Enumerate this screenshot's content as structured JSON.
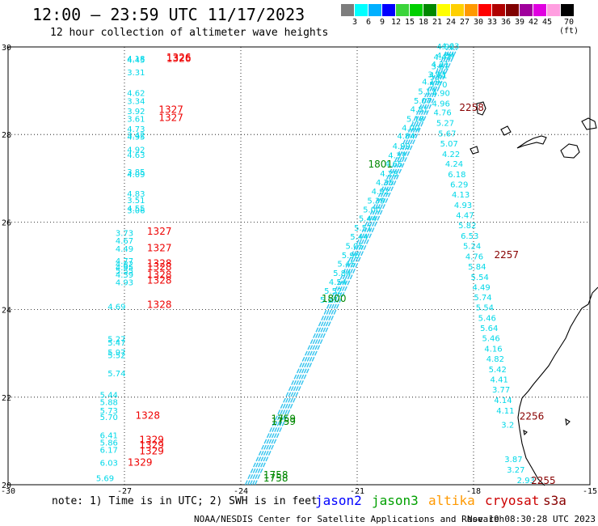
{
  "top_title": "12:00 – 23:59 UTC 11/17/2023",
  "subtitle": "12 hour collection of altimeter wave heights",
  "color_scale": {
    "labels": [
      "3",
      "6",
      "9",
      "12",
      "15",
      "18",
      "21",
      "24",
      "27",
      "30",
      "33",
      "36",
      "39",
      "42",
      "45",
      "70 (ft)"
    ],
    "colors": [
      "#7d7d7d",
      "#00ffff",
      "#00b0ff",
      "#0000ff",
      "#3ad43a",
      "#00d000",
      "#008800",
      "#ffff00",
      "#ffd000",
      "#ff9900",
      "#ff0000",
      "#b00000",
      "#800000",
      "#a0009c",
      "#e000e0",
      "#ff9ee0",
      "#000000"
    ]
  },
  "footer": {
    "note_prefix": "note: 1) Time is in UTC; 2) SWH is in feet",
    "legend": [
      {
        "name": "jason2",
        "color": "#0000ff"
      },
      {
        "name": "jason3",
        "color": "#00a000"
      },
      {
        "name": "altika",
        "color": "#ff9900"
      },
      {
        "name": "cryosat",
        "color": "#cc0000"
      },
      {
        "name": "s3a",
        "color": "#880000"
      }
    ],
    "credit": "NOAA/NESDIS Center for Satellite Applications and Research",
    "timestamp": "Nov 19 08:30:28 UTC 2023"
  },
  "chart_data": {
    "type": "scatter",
    "xlim": [
      -30,
      -15
    ],
    "ylim": [
      20,
      30
    ],
    "x_ticks": [
      "-30",
      "-27",
      "-24",
      "-21",
      "-18",
      "-15"
    ],
    "x_tick_values": [
      -30,
      -27,
      -24,
      -21,
      -18,
      -15
    ],
    "y_ticks": [
      "30",
      "28",
      "26",
      "24",
      "22",
      "20"
    ],
    "y_tick_values": [
      30,
      28,
      26,
      24,
      22,
      20
    ],
    "grid": true,
    "cryosat_track": {
      "color": "#00d8e8",
      "points": [
        {
          "x": -26.7,
          "y": 29.67,
          "label": "4.18"
        },
        {
          "x": -26.7,
          "y": 29.64,
          "label": "4.45"
        },
        {
          "x": -26.7,
          "y": 29.35,
          "label": "3.31"
        },
        {
          "x": -26.7,
          "y": 28.88,
          "label": "4.62"
        },
        {
          "x": -26.7,
          "y": 28.7,
          "label": "3.34"
        },
        {
          "x": -26.7,
          "y": 28.47,
          "label": "3.92"
        },
        {
          "x": -26.7,
          "y": 28.29,
          "label": "3.61"
        },
        {
          "x": -26.7,
          "y": 28.06,
          "label": "4.73"
        },
        {
          "x": -26.7,
          "y": 27.92,
          "label": "3.42"
        },
        {
          "x": -26.7,
          "y": 27.88,
          "label": "4.95"
        },
        {
          "x": -26.7,
          "y": 27.59,
          "label": "4.92"
        },
        {
          "x": -26.7,
          "y": 27.47,
          "label": "4.63"
        },
        {
          "x": -26.7,
          "y": 27.08,
          "label": "3.85"
        },
        {
          "x": -26.7,
          "y": 27.02,
          "label": "4.09"
        },
        {
          "x": -26.7,
          "y": 26.58,
          "label": "4.83"
        },
        {
          "x": -26.7,
          "y": 26.43,
          "label": "3.51"
        },
        {
          "x": -26.7,
          "y": 26.25,
          "label": "4.55"
        },
        {
          "x": -26.7,
          "y": 26.2,
          "label": "3.06"
        },
        {
          "x": -27.0,
          "y": 25.68,
          "label": "3.73"
        },
        {
          "x": -27.0,
          "y": 25.51,
          "label": "4.67"
        },
        {
          "x": -27.0,
          "y": 25.32,
          "label": "4.49"
        },
        {
          "x": -27.0,
          "y": 25.05,
          "label": "4.77"
        },
        {
          "x": -27.0,
          "y": 24.97,
          "label": "4.82"
        },
        {
          "x": -27.0,
          "y": 24.9,
          "label": "4.95"
        },
        {
          "x": -27.0,
          "y": 24.82,
          "label": "5.55"
        },
        {
          "x": -27.0,
          "y": 24.73,
          "label": "4.39"
        },
        {
          "x": -27.0,
          "y": 24.56,
          "label": "4.93"
        },
        {
          "x": -27.2,
          "y": 24.0,
          "label": "4.69"
        },
        {
          "x": -27.2,
          "y": 23.26,
          "label": "5.27"
        },
        {
          "x": -27.2,
          "y": 23.18,
          "label": "5.47"
        },
        {
          "x": -27.2,
          "y": 22.96,
          "label": "5.97"
        },
        {
          "x": -27.2,
          "y": 22.89,
          "label": "5.52"
        },
        {
          "x": -27.2,
          "y": 22.48,
          "label": "5.74"
        },
        {
          "x": -27.4,
          "y": 21.99,
          "label": "5.44"
        },
        {
          "x": -27.4,
          "y": 21.82,
          "label": "5.88"
        },
        {
          "x": -27.4,
          "y": 21.63,
          "label": "5.73"
        },
        {
          "x": -27.4,
          "y": 21.48,
          "label": "5.70"
        },
        {
          "x": -27.4,
          "y": 21.06,
          "label": "6.41"
        },
        {
          "x": -27.4,
          "y": 20.9,
          "label": "5.86"
        },
        {
          "x": -27.4,
          "y": 20.73,
          "label": "6.17"
        },
        {
          "x": -27.4,
          "y": 20.43,
          "label": "6.03"
        },
        {
          "x": -27.5,
          "y": 20.08,
          "label": "5.69"
        }
      ]
    },
    "cryosat_times": {
      "color": "#ee0000",
      "points": [
        {
          "x": -25.6,
          "y": 29.69,
          "label": "1326"
        },
        {
          "x": -25.6,
          "y": 29.66,
          "label": "1326"
        },
        {
          "x": -25.8,
          "y": 28.49,
          "label": "1327"
        },
        {
          "x": -25.8,
          "y": 28.31,
          "label": "1327"
        },
        {
          "x": -26.1,
          "y": 25.71,
          "label": "1327"
        },
        {
          "x": -26.1,
          "y": 25.33,
          "label": "1327"
        },
        {
          "x": -26.1,
          "y": 24.98,
          "label": "1328"
        },
        {
          "x": -26.1,
          "y": 24.9,
          "label": "1328"
        },
        {
          "x": -26.1,
          "y": 24.72,
          "label": "1328"
        },
        {
          "x": -26.1,
          "y": 24.59,
          "label": "1328"
        },
        {
          "x": -26.1,
          "y": 24.04,
          "label": "1328"
        },
        {
          "x": -26.4,
          "y": 21.51,
          "label": "1328"
        },
        {
          "x": -26.3,
          "y": 20.95,
          "label": "1329"
        },
        {
          "x": -26.3,
          "y": 20.83,
          "label": "1329"
        },
        {
          "x": -26.3,
          "y": 20.69,
          "label": "1329"
        },
        {
          "x": -26.6,
          "y": 20.43,
          "label": "1329"
        }
      ]
    },
    "jason3_ascending_track": {
      "color": "#00d8e8",
      "start": {
        "x": -23.8,
        "y": 20.0
      },
      "end": {
        "x": -18.6,
        "y": 29.95
      },
      "labels": [
        {
          "x": -18.6,
          "y": 29.95,
          "label": "4.63"
        },
        {
          "x": -18.72,
          "y": 29.74,
          "label": "4.84"
        },
        {
          "x": -18.86,
          "y": 29.54,
          "label": "4.21"
        },
        {
          "x": -18.95,
          "y": 29.31,
          "label": "3.93"
        },
        {
          "x": -19.1,
          "y": 29.14,
          "label": "4.19"
        },
        {
          "x": -19.2,
          "y": 28.92,
          "label": "5.17"
        },
        {
          "x": -19.31,
          "y": 28.71,
          "label": "5.07"
        },
        {
          "x": -19.4,
          "y": 28.51,
          "label": "4.81"
        },
        {
          "x": -19.5,
          "y": 28.29,
          "label": "5.18"
        },
        {
          "x": -19.62,
          "y": 28.09,
          "label": "4.00"
        },
        {
          "x": -19.74,
          "y": 27.9,
          "label": "4.84"
        },
        {
          "x": -19.86,
          "y": 27.67,
          "label": "4.99"
        },
        {
          "x": -19.97,
          "y": 27.46,
          "label": "4.37"
        },
        {
          "x": -20.06,
          "y": 27.26,
          "label": "4.65"
        },
        {
          "x": -20.18,
          "y": 27.04,
          "label": "4.28"
        },
        {
          "x": -20.29,
          "y": 26.84,
          "label": "4.35"
        },
        {
          "x": -20.4,
          "y": 26.64,
          "label": "4.92"
        },
        {
          "x": -20.51,
          "y": 26.42,
          "label": "5.39"
        },
        {
          "x": -20.62,
          "y": 26.22,
          "label": "5.00"
        },
        {
          "x": -20.73,
          "y": 26.02,
          "label": "5.44"
        },
        {
          "x": -20.85,
          "y": 25.8,
          "label": "5.51"
        },
        {
          "x": -20.95,
          "y": 25.6,
          "label": "5.44"
        },
        {
          "x": -21.07,
          "y": 25.39,
          "label": "5.05"
        },
        {
          "x": -21.17,
          "y": 25.18,
          "label": "5.96"
        },
        {
          "x": -21.28,
          "y": 24.98,
          "label": "5.45"
        },
        {
          "x": -21.39,
          "y": 24.77,
          "label": "5.84"
        },
        {
          "x": -21.5,
          "y": 24.57,
          "label": "4.54"
        },
        {
          "x": -21.62,
          "y": 24.36,
          "label": "5.52"
        },
        {
          "x": -21.73,
          "y": 24.16,
          "label": "5.27"
        }
      ]
    },
    "jason3_times": {
      "color": "#008800",
      "points": [
        {
          "x": -20.4,
          "y": 27.25,
          "label": "1801"
        },
        {
          "x": -21.6,
          "y": 24.18,
          "label": "1800"
        },
        {
          "x": -22.9,
          "y": 21.43,
          "label": "1759"
        },
        {
          "x": -22.9,
          "y": 21.37,
          "label": "1759"
        },
        {
          "x": -23.1,
          "y": 20.15,
          "label": "1758"
        },
        {
          "x": -23.1,
          "y": 20.07,
          "label": "1758"
        }
      ]
    },
    "altika_descending_track": {
      "color": "#00d8e8",
      "labels": [
        {
          "x": -18.72,
          "y": 29.94,
          "label": "4.92"
        },
        {
          "x": -18.8,
          "y": 29.7,
          "label": "4.47"
        },
        {
          "x": -18.86,
          "y": 29.49,
          "label": "3.81"
        },
        {
          "x": -18.91,
          "y": 29.29,
          "label": "4.81"
        },
        {
          "x": -18.91,
          "y": 29.08,
          "label": "5.70"
        },
        {
          "x": -18.84,
          "y": 28.88,
          "label": "4.90"
        },
        {
          "x": -18.84,
          "y": 28.64,
          "label": "4.96"
        },
        {
          "x": -18.8,
          "y": 28.44,
          "label": "4.76"
        },
        {
          "x": -18.73,
          "y": 28.2,
          "label": "5.27"
        },
        {
          "x": -18.68,
          "y": 27.96,
          "label": "5.67"
        },
        {
          "x": -18.63,
          "y": 27.73,
          "label": "5.07"
        },
        {
          "x": -18.58,
          "y": 27.49,
          "label": "4.22"
        },
        {
          "x": -18.5,
          "y": 27.26,
          "label": "4.24"
        },
        {
          "x": -18.43,
          "y": 27.02,
          "label": "6.18"
        },
        {
          "x": -18.37,
          "y": 26.79,
          "label": "6.29"
        },
        {
          "x": -18.33,
          "y": 26.56,
          "label": "4.13"
        },
        {
          "x": -18.27,
          "y": 26.32,
          "label": "4.93"
        },
        {
          "x": -18.22,
          "y": 26.09,
          "label": "4.47"
        },
        {
          "x": -18.16,
          "y": 25.86,
          "label": "5.82"
        },
        {
          "x": -18.1,
          "y": 25.62,
          "label": "6.53"
        },
        {
          "x": -18.04,
          "y": 25.39,
          "label": "5.24"
        },
        {
          "x": -17.98,
          "y": 25.15,
          "label": "4.76"
        },
        {
          "x": -17.91,
          "y": 24.92,
          "label": "5.84"
        },
        {
          "x": -17.84,
          "y": 24.68,
          "label": "5.54"
        },
        {
          "x": -17.8,
          "y": 24.45,
          "label": "4.49"
        },
        {
          "x": -17.76,
          "y": 24.21,
          "label": "5.74"
        },
        {
          "x": -17.71,
          "y": 23.98,
          "label": "5.54"
        },
        {
          "x": -17.65,
          "y": 23.74,
          "label": "5.46"
        },
        {
          "x": -17.6,
          "y": 23.51,
          "label": "5.64"
        },
        {
          "x": -17.55,
          "y": 23.28,
          "label": "5.46"
        },
        {
          "x": -17.49,
          "y": 23.04,
          "label": "4.16"
        },
        {
          "x": -17.44,
          "y": 22.81,
          "label": "4.82"
        },
        {
          "x": -17.38,
          "y": 22.57,
          "label": "5.42"
        },
        {
          "x": -17.34,
          "y": 22.34,
          "label": "4.41"
        },
        {
          "x": -17.29,
          "y": 22.11,
          "label": "3.77"
        },
        {
          "x": -17.24,
          "y": 21.87,
          "label": "4.14"
        },
        {
          "x": -17.18,
          "y": 21.63,
          "label": "4.11"
        },
        {
          "x": -17.12,
          "y": 21.3,
          "label": "3.2"
        },
        {
          "x": -16.97,
          "y": 20.52,
          "label": "3.87"
        },
        {
          "x": -16.91,
          "y": 20.28,
          "label": "3.27"
        },
        {
          "x": -16.65,
          "y": 20.04,
          "label": "2.93"
        }
      ]
    },
    "altika_times": {
      "color": "#880000",
      "points": [
        {
          "x": -18.05,
          "y": 28.54,
          "label": "2258"
        },
        {
          "x": -17.15,
          "y": 25.18,
          "label": "2257"
        },
        {
          "x": -16.5,
          "y": 21.49,
          "label": "2256"
        },
        {
          "x": -16.2,
          "y": 20.02,
          "label": "2255"
        }
      ]
    }
  }
}
